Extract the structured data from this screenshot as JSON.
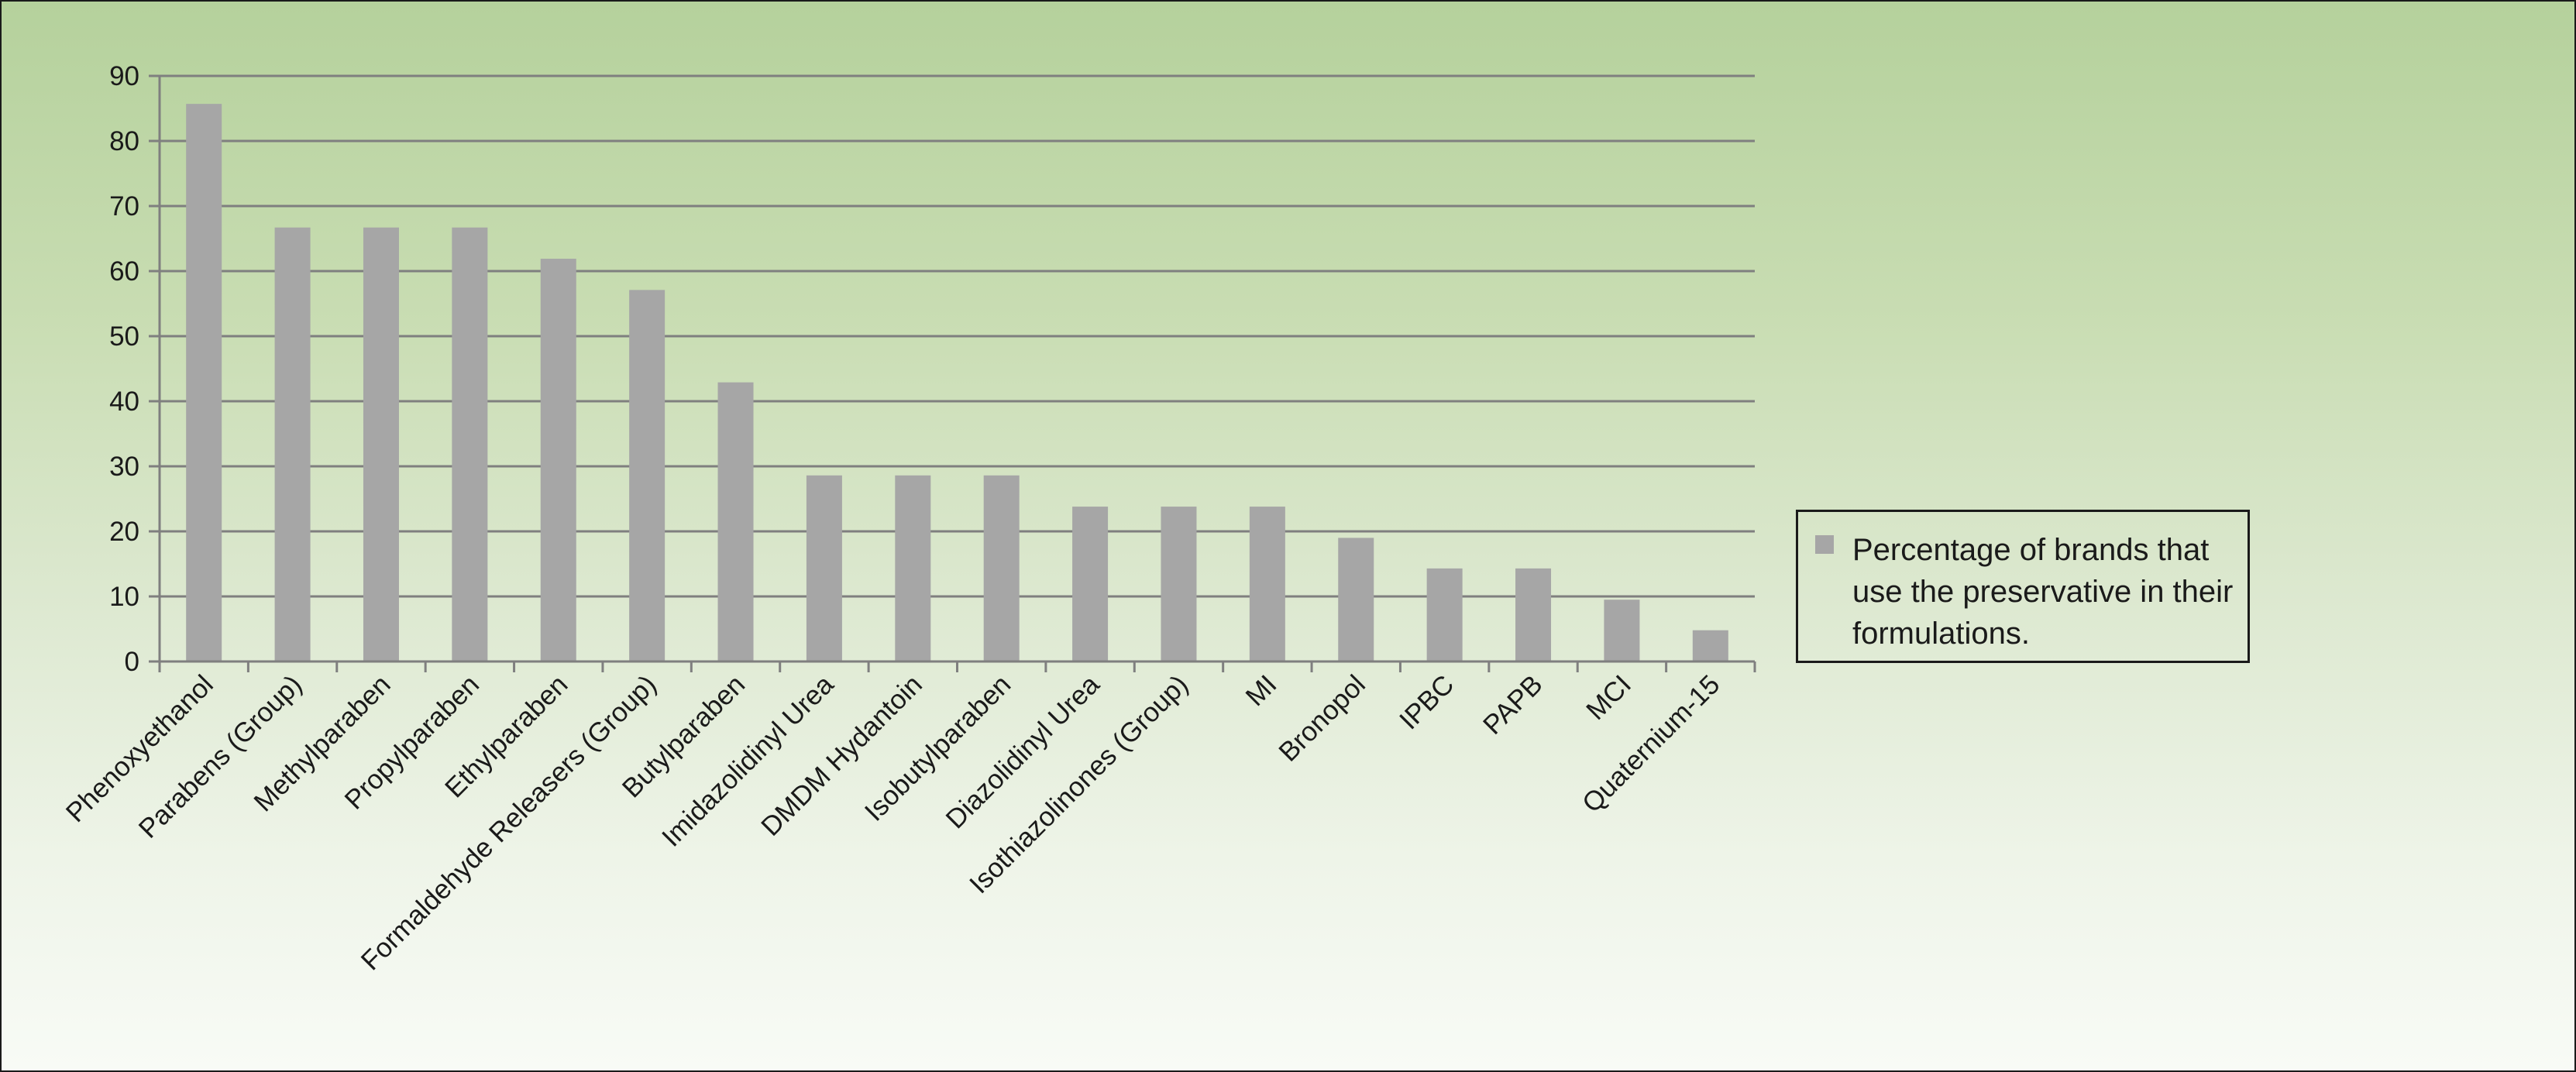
{
  "chart_data": {
    "type": "bar",
    "categories": [
      "Phenoxyethanol",
      "Parabens (Group)",
      "Methylparaben",
      "Propylparaben",
      "Ethylparaben",
      "Formaldehyde Releasers (Group)",
      "Butylparaben",
      "Imidazolidinyl Urea",
      "DMDM Hydantoin",
      "Isobutylparaben",
      "Diazolidinyl Urea",
      "Isothiazolinones (Group)",
      "MI",
      "Bronopol",
      "IPBC",
      "PAPB",
      "MCI",
      "Quaternium-15"
    ],
    "series": [
      {
        "name": "Percentage of brands that use the preservative in their formulations.",
        "values": [
          85.7,
          66.7,
          66.7,
          66.7,
          61.9,
          57.1,
          42.9,
          28.6,
          28.6,
          28.6,
          23.8,
          23.8,
          23.8,
          19.0,
          14.3,
          14.3,
          9.5,
          4.8
        ]
      }
    ],
    "ylim": [
      0,
      90
    ],
    "yticks": [
      "0",
      "10",
      "20",
      "30",
      "40",
      "50",
      "60",
      "70",
      "80",
      "90"
    ],
    "grid": true,
    "legend_position": "right",
    "colors": {
      "bar": "#a6a6a6",
      "grid": "#7f7f7f",
      "axis": "#7f7f7f",
      "text": "#1a1a1a"
    }
  },
  "legend": {
    "label": "Percentage of brands that use the preservative in their formulations."
  }
}
